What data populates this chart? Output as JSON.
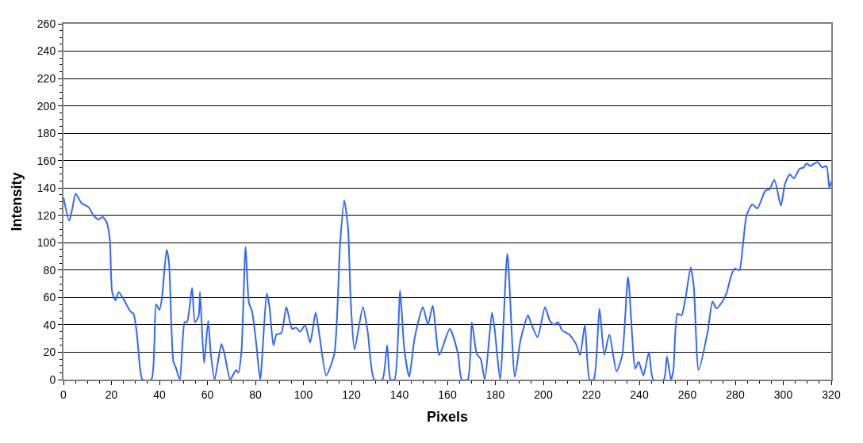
{
  "chart_data": {
    "type": "line",
    "xlabel": "Pixels",
    "ylabel": "Intensity",
    "xlim": [
      0,
      320
    ],
    "xticks": [
      0,
      20,
      40,
      60,
      80,
      100,
      120,
      140,
      160,
      180,
      200,
      220,
      240,
      260,
      280,
      300,
      320
    ],
    "ylim": [
      0,
      260
    ],
    "yticks": [
      0,
      20,
      40,
      60,
      80,
      100,
      120,
      140,
      160,
      180,
      200,
      220,
      240,
      260
    ],
    "grid": "y",
    "marker": "none",
    "line_style": "solid",
    "series": [
      {
        "color": "#3366ff",
        "x": [
          0,
          2.4,
          3.7,
          5.1,
          7.5,
          10.5,
          12.5,
          14.6,
          16.3,
          18,
          19.3,
          20.3,
          21.7,
          23,
          24.7,
          27.8,
          29.2,
          30.5,
          32,
          32.9,
          36.6,
          37.9,
          38.6,
          40,
          41,
          43,
          44,
          45.8,
          46.8,
          48.5,
          50.5,
          51.5,
          53.6,
          54.8,
          56.3,
          56.9,
          58.6,
          60.3,
          61.4,
          63,
          65.8,
          67.1,
          69.5,
          71.9,
          72.9,
          74.2,
          75.9,
          77.3,
          78.6,
          80.3,
          82,
          84.7,
          85.8,
          87.5,
          88.8,
          90.8,
          92.9,
          95.3,
          96.9,
          98.6,
          100.7,
          102.8,
          105.1,
          106.8,
          109.5,
          112.9,
          115.3,
          117,
          118.6,
          119.7,
          121.3,
          124.8,
          126.8,
          129.5,
          132.9,
          134.9,
          136.3,
          138,
          140.3,
          142,
          144.1,
          146.4,
          149.8,
          151.9,
          153.9,
          156.6,
          161,
          164.4,
          166,
          168.5,
          170.2,
          172.2,
          173.9,
          175.6,
          178.6,
          179.7,
          182,
          185,
          188.1,
          190.5,
          193.6,
          194.9,
          197.6,
          200.7,
          202.7,
          204.4,
          206.1,
          207.8,
          210.8,
          213.6,
          215.3,
          217.3,
          219.3,
          221,
          223.4,
          225.4,
          227.5,
          230.5,
          232.9,
          235.3,
          238.3,
          239.7,
          241.7,
          244,
          245.8,
          250.2,
          251.5,
          253.2,
          254.2,
          255.9,
          257.6,
          259.3,
          261.4,
          262.7,
          264.7,
          268.5,
          270.5,
          272.2,
          274.6,
          276.3,
          278.3,
          279.7,
          281.7,
          283.1,
          284.7,
          287.1,
          289.2,
          292.5,
          294.2,
          296.3,
          299,
          300.7,
          302.7,
          304.4,
          306.8,
          308.5,
          309.8,
          311.2,
          314.2,
          316.3,
          318,
          319.2,
          320
        ],
        "values": [
          133,
          116,
          125,
          136,
          129,
          126,
          120,
          117,
          119,
          115,
          103,
          64,
          58,
          64,
          60,
          50,
          48,
          35,
          7,
          0,
          0,
          27,
          55,
          51,
          59,
          95,
          85,
          13,
          9,
          0,
          42,
          42,
          67,
          42,
          46,
          64,
          12,
          43,
          19,
          0,
          26,
          19,
          0,
          7,
          5,
          21,
          97,
          56,
          50,
          27,
          0,
          63,
          54,
          25,
          33,
          34,
          53,
          37,
          38,
          35,
          40,
          27,
          49,
          31,
          3,
          19,
          99,
          131,
          111,
          58,
          22,
          53,
          35,
          0,
          0,
          25,
          0,
          0,
          65,
          23,
          2,
          31,
          53,
          40,
          54,
          18,
          37,
          19,
          0,
          0,
          42,
          19,
          15,
          0,
          49,
          37,
          0,
          92,
          2,
          29,
          47,
          41,
          31,
          53,
          43,
          40,
          42,
          36,
          33,
          26,
          18,
          40,
          0,
          0,
          52,
          18,
          33,
          6,
          18,
          75,
          8,
          13,
          3,
          20,
          0,
          0,
          17,
          0,
          7,
          48,
          47,
          60,
          82,
          68,
          7,
          35,
          57,
          52,
          57,
          63,
          76,
          81,
          80,
          97,
          120,
          128,
          125,
          138,
          139,
          146,
          127,
          143,
          150,
          147,
          154,
          155,
          158,
          156,
          159,
          155,
          156,
          140,
          145
        ]
      }
    ]
  }
}
